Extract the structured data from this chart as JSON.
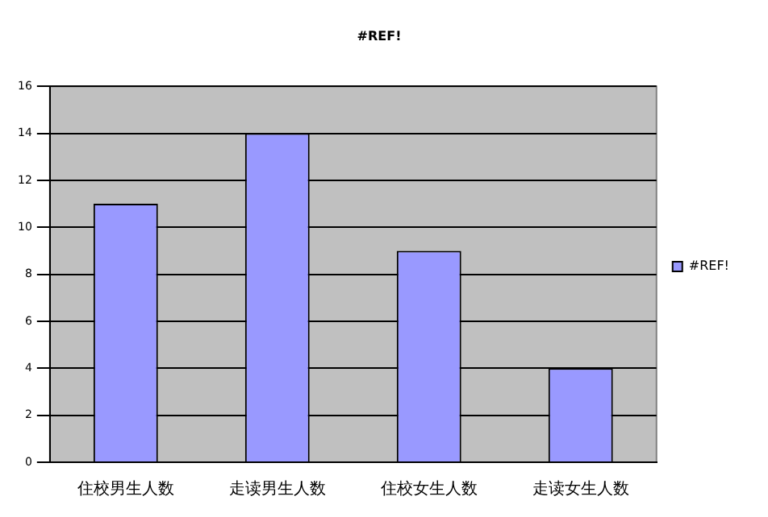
{
  "chart_data": {
    "type": "bar",
    "title": "#REF!",
    "categories": [
      "住校男生人数",
      "走读男生人数",
      "住校女生人数",
      "走读女生人数"
    ],
    "series": [
      {
        "name": "#REF!",
        "color": "#9999ff",
        "values": [
          11,
          14,
          9,
          4
        ]
      }
    ],
    "ylim": [
      0,
      16
    ],
    "yticks": [
      0,
      2,
      4,
      6,
      8,
      10,
      12,
      14,
      16
    ],
    "grid": "y",
    "legend": "right"
  }
}
